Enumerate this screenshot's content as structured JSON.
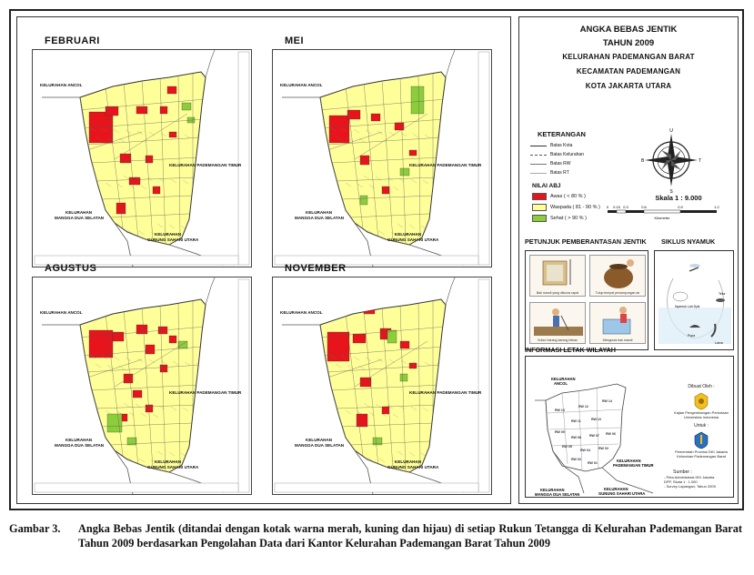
{
  "maps": [
    {
      "title": "FEBRUARI"
    },
    {
      "title": "MEI"
    },
    {
      "title": "AGUSTUS"
    },
    {
      "title": "NOVEMBER"
    }
  ],
  "map_labels": {
    "ancol": "KELURAHAN ANCOL",
    "pademangan_timur": "KELURAHAN PADEMANGAN TIMUR",
    "mangga_dua_1": "KELURAHAN",
    "mangga_dua_2": "MANGGA DUA SELATAN",
    "gunung_sahari_1": "KELURAHAN",
    "gunung_sahari_2": "GUNUNG SAHARI UTARA"
  },
  "title": {
    "line1": "ANGKA BEBAS JENTIK",
    "line2": "TAHUN 2009",
    "line3": "KELURAHAN PADEMANGAN BARAT",
    "line4": "KECAMATAN PADEMANGAN",
    "line5": "KOTA JAKARTA UTARA"
  },
  "keterangan": {
    "heading": "KETERANGAN",
    "lines": [
      "Batas Kota",
      "Batas Kelurahan",
      "Batas RW",
      "Batas RT"
    ]
  },
  "nilai_abj": {
    "heading": "NILAI ABJ",
    "items": [
      {
        "label": "Awas ( < 80 % )",
        "color": "#e8141b"
      },
      {
        "label": "Waspada ( 81 - 90 % )",
        "color": "#ffff99"
      },
      {
        "label": "Sehat ( > 90 % )",
        "color": "#8ccd3c"
      }
    ]
  },
  "compass": {
    "n": "U",
    "s": "S",
    "e": "T",
    "w": "B"
  },
  "scale": {
    "text": "Skala 1 : 9.000",
    "ticks": [
      "0",
      "0.15",
      "0.3",
      "0.6",
      "0.9",
      "1.2"
    ],
    "unit": "Kilometer"
  },
  "petunjuk": {
    "heading": "PETUNJUK PEMBERANTASAN JENTIK",
    "captions": [
      "Bak mandi yang dikuras rapat",
      "Tutup tempat penampungan air",
      "Kubur barang-barang bekas",
      "Menguras bak mandi"
    ]
  },
  "siklus": {
    "heading": "SIKLUS NYAMUK",
    "stages": [
      "Telur",
      "Nyamuk Lah Dyik",
      "Pupa",
      "Larva"
    ]
  },
  "info": {
    "heading": "INFORMASI LETAK WILAYAH",
    "ancol_1": "KELURAHAN",
    "ancol_2": "ANCOL",
    "timur_1": "KELURAHAN",
    "timur_2": "PADEMANGAN TIMUR",
    "mangga_1": "KELURAHAN",
    "mangga_2": "MANGGA DUA SELATAN",
    "gunung_1": "KELURAHAN",
    "gunung_2": "GUNUNG SAHARI UTARA",
    "rws": [
      "RW 13",
      "RW 12",
      "RW 14",
      "RW 11",
      "RW 10",
      "RW 09",
      "RW 08",
      "RW 07",
      "RW 06",
      "RW 05",
      "RW 04",
      "RW 03",
      "RW 02",
      "RW 01"
    ],
    "dibuat_oleh": "Dibuat Oleh :",
    "org1": "Kajian Pengembangan Perkotaan",
    "org1b": "Universitas Indonesia",
    "untuk": "Untuk :",
    "org2": "Pemerintah Provinsi DKI Jakarta",
    "org2b": "Kelurahan Pademangan Barat",
    "sumber": "Sumber :",
    "src1": "- Peta Administrasi DKI Jakarta",
    "src2": "  DPP, Skala 1 : 1.000",
    "src3": "- Survey Lapangan, Tahun 2009"
  },
  "caption": {
    "label": "Gambar 3.",
    "text": "Angka Bebas Jentik (ditandai dengan kotak warna merah, kuning dan hijau) di setiap Rukun Tetangga di Kelurahan Pademangan Barat Tahun 2009 berdasarkan Pengolahan Data dari Kantor Kelurahan Pademangan Barat Tahun 2009"
  }
}
